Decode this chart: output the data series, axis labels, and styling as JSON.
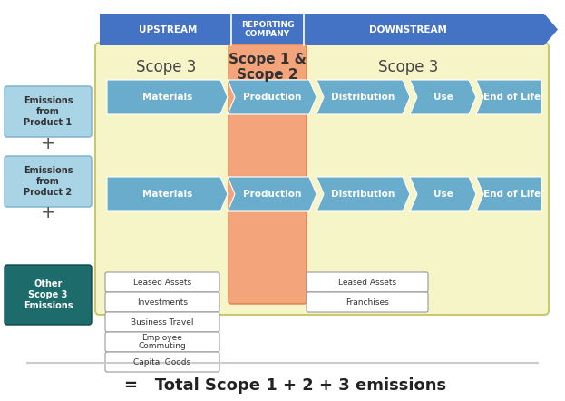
{
  "bg_color": "#ffffff",
  "header_arrow_color": "#4472c4",
  "header_text_color": "#ffffff",
  "scope3_bg_color": "#f5f5c8",
  "scope12_bg_color": "#f4a47a",
  "arrow_blue": "#6aaccc",
  "left_box_color": "#a8d4e6",
  "other_box_color": "#1e6b6b",
  "bottom_line_color": "#cccccc",
  "bottom_text": "=   Total Scope 1 + 2 + 3 emissions",
  "left_labels": [
    "Emissions\nfrom\nProduct 1",
    "Emissions\nfrom\nProduct 2",
    "Other\nScope 3\nEmissions"
  ],
  "upstream_boxes": [
    "Leased Assets",
    "Investments",
    "Business Travel",
    "Employee\nCommuting",
    "Capital Goods"
  ],
  "downstream_boxes": [
    "Leased Assets",
    "Franchises"
  ]
}
